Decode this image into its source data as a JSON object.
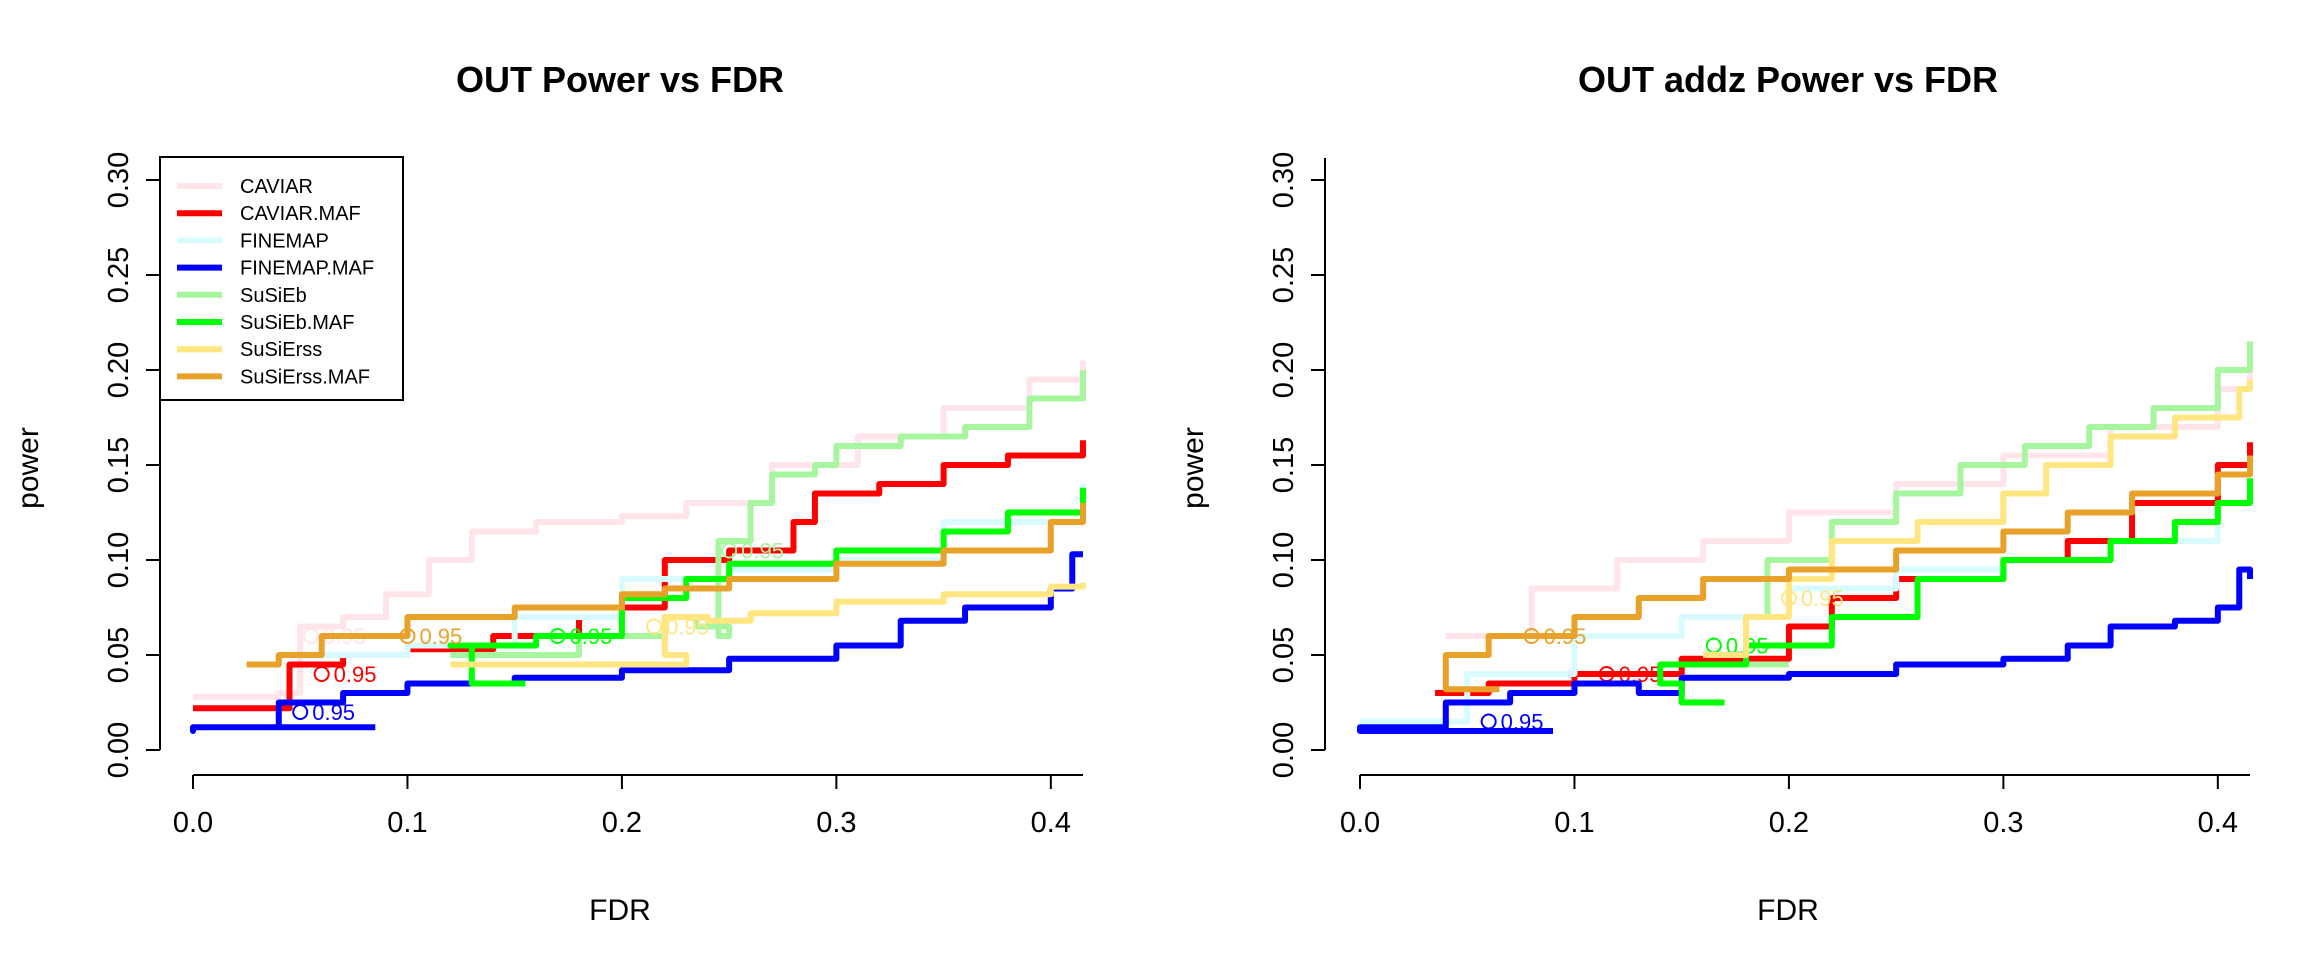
{
  "chart_data": [
    {
      "type": "line",
      "title": "OUT Power vs FDR",
      "xlabel": "FDR",
      "ylabel": "power",
      "xlim": [
        0,
        0.415
      ],
      "ylim": [
        0,
        0.3
      ],
      "xticks": [
        "0.0",
        "0.1",
        "0.2",
        "0.3",
        "0.4"
      ],
      "yticks": [
        "0.00",
        "0.05",
        "0.10",
        "0.15",
        "0.20",
        "0.25",
        "0.30"
      ],
      "legend_position": "top-left",
      "series": [
        {
          "name": "CAVIAR",
          "color": "#FFE4EA",
          "x": [
            0.0,
            0.04,
            0.05,
            0.07,
            0.09,
            0.11,
            0.13,
            0.16,
            0.2,
            0.23,
            0.27,
            0.31,
            0.35,
            0.39,
            0.415
          ],
          "y": [
            0.028,
            0.03,
            0.065,
            0.07,
            0.082,
            0.1,
            0.115,
            0.12,
            0.123,
            0.13,
            0.15,
            0.165,
            0.18,
            0.195,
            0.205
          ],
          "annotation": {
            "x": 0.055,
            "y": 0.06,
            "label": "0.95"
          }
        },
        {
          "name": "CAVIAR.MAF",
          "color": "#FF0000",
          "x": [
            0.0,
            0.035,
            0.045,
            0.07,
            0.1,
            0.14,
            0.18,
            0.2,
            0.22,
            0.25,
            0.28,
            0.29,
            0.32,
            0.35,
            0.38,
            0.415
          ],
          "y": [
            0.022,
            0.022,
            0.045,
            0.05,
            0.053,
            0.06,
            0.07,
            0.075,
            0.1,
            0.105,
            0.12,
            0.135,
            0.14,
            0.15,
            0.155,
            0.163
          ],
          "annotation": {
            "x": 0.06,
            "y": 0.04,
            "label": "0.95"
          }
        },
        {
          "name": "FINEMAP",
          "color": "#D8FBFF",
          "x": [
            0.05,
            0.1,
            0.15,
            0.2,
            0.25,
            0.3,
            0.35,
            0.415
          ],
          "y": [
            0.05,
            0.055,
            0.07,
            0.09,
            0.095,
            0.1,
            0.12,
            0.14
          ],
          "annotation": {
            "x": 0.1,
            "y": 0.05,
            "label": ""
          }
        },
        {
          "name": "FINEMAP.MAF",
          "color": "#0000FF",
          "x": [
            0.085,
            0.0,
            0.0,
            0.04,
            0.07,
            0.1,
            0.15,
            0.2,
            0.25,
            0.3,
            0.33,
            0.36,
            0.4,
            0.41,
            0.41,
            0.415
          ],
          "y": [
            0.012,
            0.01,
            0.012,
            0.025,
            0.03,
            0.035,
            0.038,
            0.042,
            0.048,
            0.055,
            0.068,
            0.075,
            0.085,
            0.088,
            0.103,
            0.103
          ],
          "annotation": {
            "x": 0.05,
            "y": 0.02,
            "label": "0.95"
          }
        },
        {
          "name": "SuSiEb",
          "color": "#A8F5A0",
          "x": [
            0.12,
            0.18,
            0.22,
            0.235,
            0.25,
            0.245,
            0.26,
            0.27,
            0.29,
            0.3,
            0.33,
            0.36,
            0.39,
            0.415
          ],
          "y": [
            0.05,
            0.06,
            0.07,
            0.065,
            0.06,
            0.11,
            0.13,
            0.145,
            0.15,
            0.16,
            0.165,
            0.17,
            0.185,
            0.2
          ],
          "annotation": {
            "x": 0.25,
            "y": 0.105,
            "label": "0.95"
          }
        },
        {
          "name": "SuSiEb.MAF",
          "color": "#00FF00",
          "x": [
            0.155,
            0.13,
            0.12,
            0.16,
            0.2,
            0.23,
            0.25,
            0.3,
            0.35,
            0.38,
            0.415
          ],
          "y": [
            0.035,
            0.055,
            0.055,
            0.06,
            0.08,
            0.09,
            0.098,
            0.105,
            0.115,
            0.125,
            0.138
          ],
          "annotation": {
            "x": 0.17,
            "y": 0.06,
            "label": "0.95"
          }
        },
        {
          "name": "SuSiErss",
          "color": "#FFE680",
          "x": [
            0.12,
            0.2,
            0.23,
            0.22,
            0.24,
            0.26,
            0.3,
            0.35,
            0.4,
            0.415
          ],
          "y": [
            0.045,
            0.045,
            0.05,
            0.07,
            0.068,
            0.072,
            0.078,
            0.082,
            0.086,
            0.088
          ],
          "annotation": {
            "x": 0.215,
            "y": 0.065,
            "label": "0.95"
          }
        },
        {
          "name": "SuSiErss.MAF",
          "color": "#E8A22A",
          "x": [
            0.025,
            0.04,
            0.06,
            0.1,
            0.15,
            0.2,
            0.22,
            0.25,
            0.3,
            0.35,
            0.4,
            0.415
          ],
          "y": [
            0.045,
            0.05,
            0.06,
            0.07,
            0.075,
            0.082,
            0.085,
            0.09,
            0.098,
            0.105,
            0.12,
            0.13
          ],
          "annotation": {
            "x": 0.1,
            "y": 0.06,
            "label": "0.95"
          }
        }
      ]
    },
    {
      "type": "line",
      "title": "OUT addz Power vs FDR",
      "xlabel": "FDR",
      "ylabel": "power",
      "xlim": [
        0,
        0.415
      ],
      "ylim": [
        0,
        0.3
      ],
      "xticks": [
        "0.0",
        "0.1",
        "0.2",
        "0.3",
        "0.4"
      ],
      "yticks": [
        "0.00",
        "0.05",
        "0.10",
        "0.15",
        "0.20",
        "0.25",
        "0.30"
      ],
      "series": [
        {
          "name": "CAVIAR",
          "color": "#FFE4EA",
          "x": [
            0.04,
            0.08,
            0.12,
            0.16,
            0.2,
            0.25,
            0.3,
            0.35,
            0.4,
            0.415
          ],
          "y": [
            0.06,
            0.085,
            0.1,
            0.11,
            0.125,
            0.14,
            0.155,
            0.17,
            0.19,
            0.2
          ],
          "annotation": {
            "x": 0.0,
            "y": 0.0,
            "label": ""
          }
        },
        {
          "name": "CAVIAR.MAF",
          "color": "#FF0000",
          "x": [
            0.035,
            0.06,
            0.1,
            0.15,
            0.2,
            0.22,
            0.25,
            0.3,
            0.33,
            0.36,
            0.4,
            0.415
          ],
          "y": [
            0.03,
            0.035,
            0.04,
            0.048,
            0.065,
            0.08,
            0.09,
            0.1,
            0.11,
            0.13,
            0.15,
            0.162
          ],
          "annotation": {
            "x": 0.115,
            "y": 0.04,
            "label": "0.95"
          }
        },
        {
          "name": "FINEMAP",
          "color": "#D8FBFF",
          "x": [
            0.0,
            0.05,
            0.1,
            0.15,
            0.2,
            0.25,
            0.3,
            0.35,
            0.4,
            0.415
          ],
          "y": [
            0.015,
            0.04,
            0.06,
            0.07,
            0.085,
            0.095,
            0.1,
            0.11,
            0.13,
            0.14
          ],
          "annotation": {
            "x": 0.0,
            "y": 0.0,
            "label": ""
          }
        },
        {
          "name": "FINEMAP.MAF",
          "color": "#0000FF",
          "x": [
            0.09,
            0.0,
            0.0,
            0.04,
            0.07,
            0.1,
            0.13,
            0.15,
            0.2,
            0.25,
            0.3,
            0.33,
            0.35,
            0.38,
            0.4,
            0.41,
            0.415
          ],
          "y": [
            0.01,
            0.01,
            0.012,
            0.025,
            0.03,
            0.035,
            0.03,
            0.038,
            0.04,
            0.045,
            0.048,
            0.055,
            0.065,
            0.068,
            0.075,
            0.095,
            0.09
          ],
          "annotation": {
            "x": 0.06,
            "y": 0.015,
            "label": "0.95"
          }
        },
        {
          "name": "SuSiEb",
          "color": "#A8F5A0",
          "x": [
            0.2,
            0.18,
            0.19,
            0.22,
            0.25,
            0.28,
            0.31,
            0.34,
            0.37,
            0.4,
            0.415
          ],
          "y": [
            0.045,
            0.07,
            0.1,
            0.12,
            0.135,
            0.15,
            0.16,
            0.17,
            0.18,
            0.2,
            0.215
          ],
          "annotation": {
            "x": 0.0,
            "y": 0.0,
            "label": ""
          }
        },
        {
          "name": "SuSiEb.MAF",
          "color": "#00FF00",
          "x": [
            0.17,
            0.15,
            0.14,
            0.18,
            0.22,
            0.26,
            0.3,
            0.35,
            0.38,
            0.4,
            0.415
          ],
          "y": [
            0.025,
            0.035,
            0.045,
            0.055,
            0.07,
            0.09,
            0.1,
            0.11,
            0.12,
            0.13,
            0.143
          ],
          "annotation": {
            "x": 0.165,
            "y": 0.055,
            "label": "0.95"
          }
        },
        {
          "name": "SuSiErss",
          "color": "#FFE680",
          "x": [
            0.16,
            0.18,
            0.2,
            0.22,
            0.26,
            0.3,
            0.32,
            0.35,
            0.38,
            0.41,
            0.415
          ],
          "y": [
            0.05,
            0.07,
            0.09,
            0.11,
            0.12,
            0.135,
            0.15,
            0.165,
            0.175,
            0.19,
            0.195
          ],
          "annotation": {
            "x": 0.2,
            "y": 0.08,
            "label": "0.95"
          }
        },
        {
          "name": "SuSiErss.MAF",
          "color": "#E8A22A",
          "x": [
            0.065,
            0.04,
            0.06,
            0.1,
            0.13,
            0.16,
            0.2,
            0.25,
            0.3,
            0.33,
            0.36,
            0.4,
            0.415
          ],
          "y": [
            0.032,
            0.05,
            0.06,
            0.07,
            0.08,
            0.09,
            0.095,
            0.105,
            0.115,
            0.125,
            0.135,
            0.145,
            0.155
          ],
          "annotation": {
            "x": 0.08,
            "y": 0.06,
            "label": "0.95"
          }
        }
      ]
    }
  ]
}
